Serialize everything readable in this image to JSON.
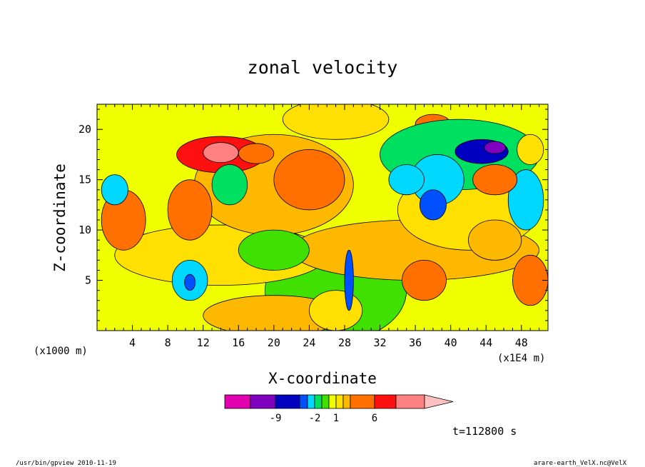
{
  "chart_data": {
    "type": "heatmap",
    "title": "zonal velocity",
    "xlabel": "X-coordinate",
    "ylabel": "Z-coordinate",
    "x_unit": "(x1E4 m)",
    "y_unit": "(x1000 m)",
    "xlim": [
      0,
      51
    ],
    "ylim": [
      0,
      22.5
    ],
    "x_ticks": [
      "4",
      "8",
      "12",
      "16",
      "20",
      "24",
      "28",
      "32",
      "36",
      "40",
      "44",
      "48"
    ],
    "x_tick_values": [
      4,
      8,
      12,
      16,
      20,
      24,
      28,
      32,
      36,
      40,
      44,
      48
    ],
    "y_ticks": [
      "5",
      "10",
      "15",
      "20"
    ],
    "y_tick_values": [
      5,
      10,
      15,
      20
    ],
    "time_label": "t=112800 s",
    "colorbar": {
      "levels": [
        -12,
        -9,
        -6,
        -3,
        -2,
        -1,
        0,
        1,
        2,
        3,
        6,
        9,
        12
      ],
      "colors": [
        "#e000b0",
        "#8000c0",
        "#0000c0",
        "#0050ff",
        "#00d8ff",
        "#00e060",
        "#40e000",
        "#f0ff00",
        "#ffe000",
        "#ffb800",
        "#ff7000",
        "#ff1010",
        "#ff8080",
        "#ffc0c0"
      ],
      "tick_labels": [
        "-9",
        "-2",
        "1",
        "6"
      ],
      "tick_values": [
        -9,
        -2,
        1,
        6
      ]
    },
    "blobs": [
      {
        "x": 27,
        "z": 4,
        "rx": 8,
        "rz": 5,
        "level": -0.5
      },
      {
        "x": 20,
        "z": 1.5,
        "rx": 8,
        "rz": 2,
        "level": 2
      },
      {
        "x": 14,
        "z": 7.5,
        "rx": 12,
        "rz": 3,
        "level": 1.5
      },
      {
        "x": 36,
        "z": 8,
        "rx": 14,
        "rz": 3,
        "level": 2
      },
      {
        "x": 42,
        "z": 12,
        "rx": 8,
        "rz": 4,
        "level": 1.5
      },
      {
        "x": 20,
        "z": 14.5,
        "rx": 9,
        "rz": 5,
        "level": 2.5
      },
      {
        "x": 24,
        "z": 15,
        "rx": 4,
        "rz": 3,
        "level": 3.5
      },
      {
        "x": 14,
        "z": 17.5,
        "rx": 5,
        "rz": 1.8,
        "level": 6
      },
      {
        "x": 14,
        "z": 17.7,
        "rx": 2,
        "rz": 1,
        "level": 9
      },
      {
        "x": 18,
        "z": 17.6,
        "rx": 2,
        "rz": 1,
        "level": 3
      },
      {
        "x": 10.5,
        "z": 12,
        "rx": 2.5,
        "rz": 3,
        "level": 3.5
      },
      {
        "x": 15,
        "z": 14.5,
        "rx": 2,
        "rz": 2,
        "level": -2
      },
      {
        "x": 27,
        "z": 21,
        "rx": 6,
        "rz": 2,
        "level": 1.5
      },
      {
        "x": 38,
        "z": 20.5,
        "rx": 2,
        "rz": 1,
        "level": 3.5
      },
      {
        "x": 41,
        "z": 17.5,
        "rx": 9,
        "rz": 3.5,
        "level": -1.5
      },
      {
        "x": 43.5,
        "z": 17.8,
        "rx": 3,
        "rz": 1.2,
        "level": -7
      },
      {
        "x": 45,
        "z": 18.2,
        "rx": 1.2,
        "rz": 0.6,
        "level": -10
      },
      {
        "x": 38.5,
        "z": 15,
        "rx": 3,
        "rz": 2.5,
        "level": -2.5
      },
      {
        "x": 38,
        "z": 12.5,
        "rx": 1.5,
        "rz": 1.5,
        "level": -6
      },
      {
        "x": 35,
        "z": 15,
        "rx": 2,
        "rz": 1.5,
        "level": -3
      },
      {
        "x": 48.5,
        "z": 13,
        "rx": 2,
        "rz": 3,
        "level": -2.5
      },
      {
        "x": 45,
        "z": 15,
        "rx": 2.5,
        "rz": 1.5,
        "level": 3.5
      },
      {
        "x": 49,
        "z": 18,
        "rx": 1.5,
        "rz": 1.5,
        "level": 1.5
      },
      {
        "x": 10.5,
        "z": 5,
        "rx": 2,
        "rz": 2,
        "level": -2.5
      },
      {
        "x": 10.5,
        "z": 4.8,
        "rx": 0.6,
        "rz": 0.8,
        "level": -5
      },
      {
        "x": 37,
        "z": 5,
        "rx": 2.5,
        "rz": 2,
        "level": 3.5
      },
      {
        "x": 49,
        "z": 5,
        "rx": 2,
        "rz": 2.5,
        "level": 3.5
      },
      {
        "x": 27,
        "z": 2,
        "rx": 3,
        "rz": 2,
        "level": 1.5
      },
      {
        "x": 28.5,
        "z": 5,
        "rx": 0.5,
        "rz": 3,
        "level": -5
      },
      {
        "x": 3,
        "z": 11,
        "rx": 2.5,
        "rz": 3,
        "level": 4
      },
      {
        "x": 2,
        "z": 14,
        "rx": 1.5,
        "rz": 1.5,
        "level": -2.5
      },
      {
        "x": 45,
        "z": 9,
        "rx": 3,
        "rz": 2,
        "level": 2
      },
      {
        "x": 20,
        "z": 8,
        "rx": 4,
        "rz": 2,
        "level": -0.5
      }
    ]
  },
  "footer": {
    "left": "/usr/bin/gpview  2010-11-19",
    "right": "arare-earth_VelX.nc@VelX"
  }
}
